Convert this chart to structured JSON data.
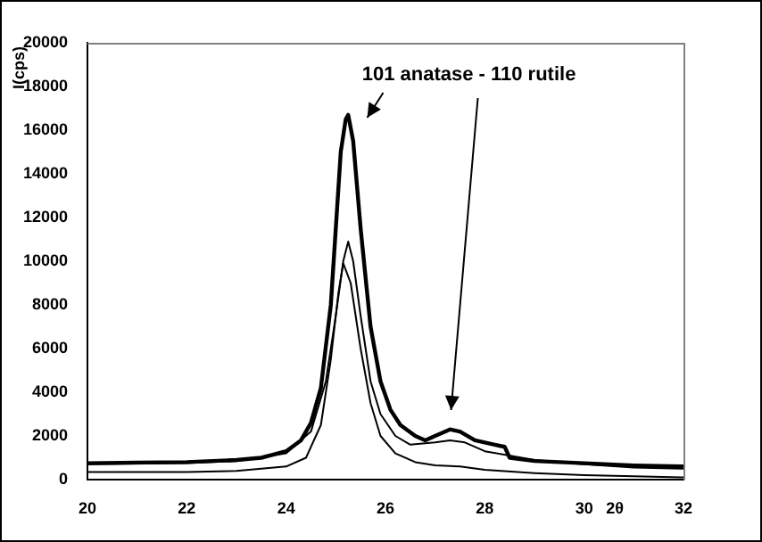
{
  "chart_data": {
    "type": "line",
    "xlabel": "2θ",
    "ylabel": "I(cps)",
    "annotations": [
      "101 anatase - 110 rutile"
    ],
    "xlim": [
      20,
      32
    ],
    "xticks": [
      20,
      22,
      24,
      26,
      28,
      30,
      32
    ],
    "ylim": [
      0,
      20000
    ],
    "yticks": [
      0,
      2000,
      4000,
      6000,
      8000,
      10000,
      12000,
      14000,
      16000,
      18000,
      20000
    ],
    "grid": false,
    "legend": false,
    "marker": "none",
    "line_style": "solid",
    "series": [
      {
        "color": "#000000",
        "x": [
          20,
          21,
          22,
          23,
          23.5,
          24,
          24.3,
          24.5,
          24.7,
          24.9,
          25.0,
          25.1,
          25.2,
          25.25,
          25.35,
          25.5,
          25.7,
          25.9,
          26.1,
          26.3,
          26.6,
          26.8,
          27.0,
          27.3,
          27.5,
          27.8,
          28.2,
          28.4,
          28.5,
          29,
          30,
          31,
          32
        ],
        "values": [
          750,
          780,
          800,
          900,
          1000,
          1300,
          1800,
          2600,
          4200,
          8000,
          11500,
          15000,
          16500,
          16700,
          15500,
          11500,
          7000,
          4500,
          3200,
          2500,
          2000,
          1800,
          2000,
          2300,
          2200,
          1800,
          1600,
          1500,
          1000,
          850,
          750,
          650,
          600
        ]
      },
      {
        "color": "#000000",
        "x": [
          20,
          22,
          23,
          24,
          24.5,
          24.8,
          25.0,
          25.15,
          25.25,
          25.35,
          25.5,
          25.7,
          25.9,
          26.2,
          26.5,
          27,
          27.3,
          27.6,
          28,
          29,
          30,
          31,
          32
        ],
        "values": [
          700,
          750,
          850,
          1200,
          2200,
          4500,
          7500,
          10000,
          10900,
          10000,
          7500,
          4500,
          3000,
          2000,
          1600,
          1700,
          1800,
          1700,
          1300,
          900,
          700,
          550,
          500
        ]
      },
      {
        "color": "#000000",
        "x": [
          20,
          22,
          23,
          24,
          24.4,
          24.7,
          24.9,
          25.05,
          25.15,
          25.3,
          25.5,
          25.7,
          25.9,
          26.2,
          26.6,
          27,
          27.5,
          28,
          29,
          30,
          31,
          32
        ],
        "values": [
          350,
          350,
          400,
          600,
          1000,
          2500,
          5500,
          8500,
          9900,
          9000,
          6000,
          3500,
          2000,
          1200,
          800,
          650,
          600,
          450,
          300,
          200,
          150,
          100
        ]
      }
    ]
  }
}
